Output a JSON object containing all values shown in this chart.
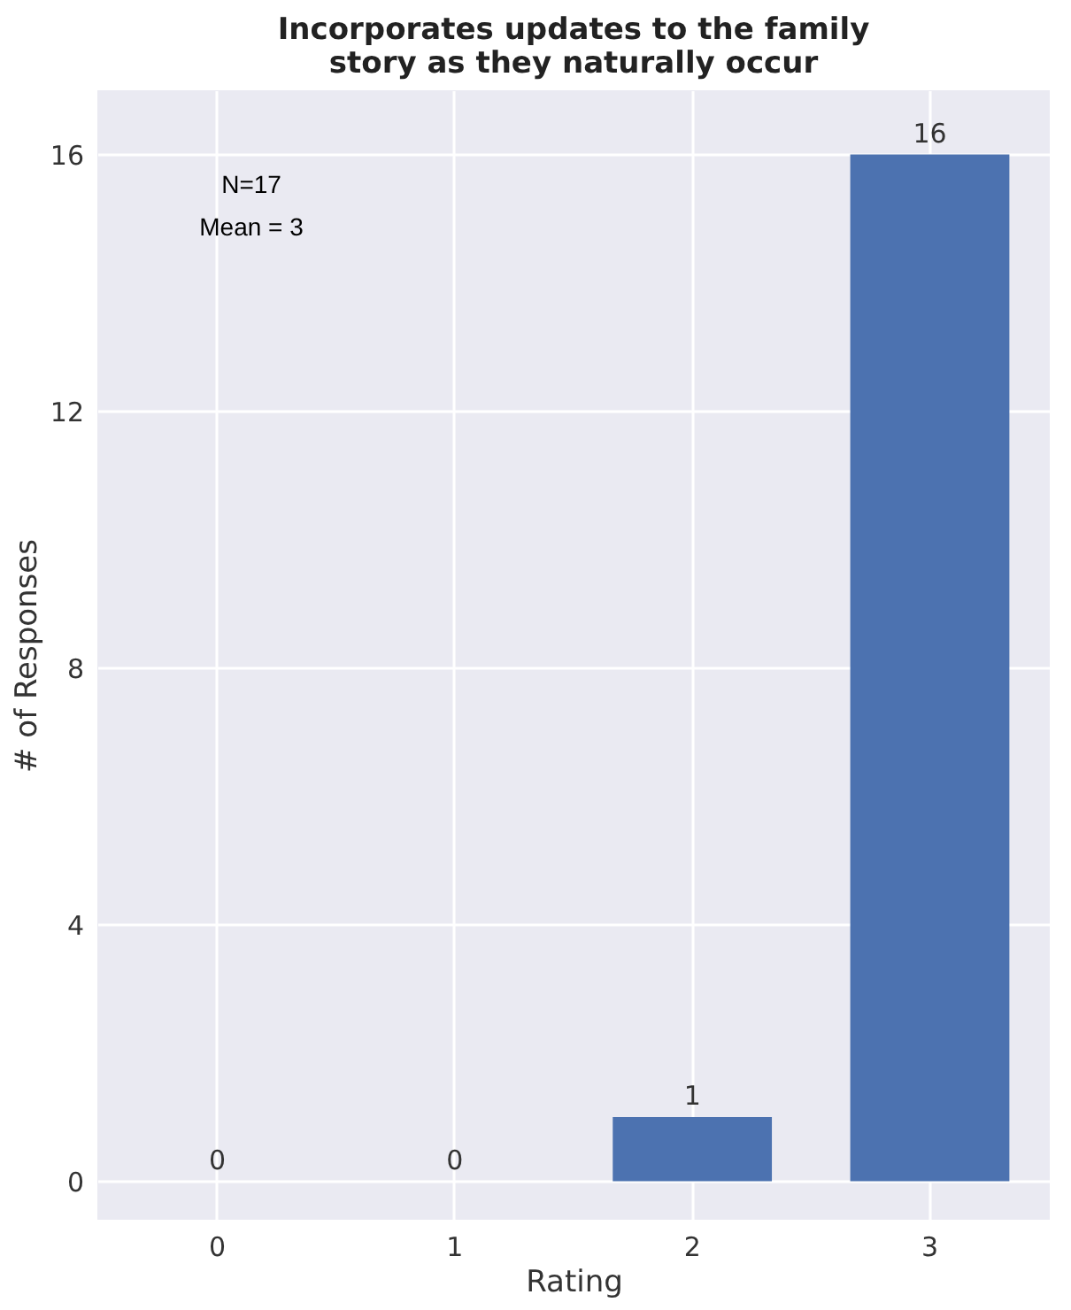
{
  "chart_data": {
    "type": "bar",
    "title": "Incorporates updates to the family story as they naturally occur",
    "xlabel": "Rating",
    "ylabel": "# of Responses",
    "categories": [
      "0",
      "1",
      "2",
      "3"
    ],
    "values": [
      0,
      0,
      1,
      16
    ],
    "color": "#4c72b0",
    "ylim": [
      -0.6,
      17
    ],
    "yticks": [
      0,
      4,
      8,
      12,
      16
    ],
    "grid": true,
    "data_labels": true,
    "annotations": [
      "N=17",
      "Mean = 3"
    ]
  }
}
